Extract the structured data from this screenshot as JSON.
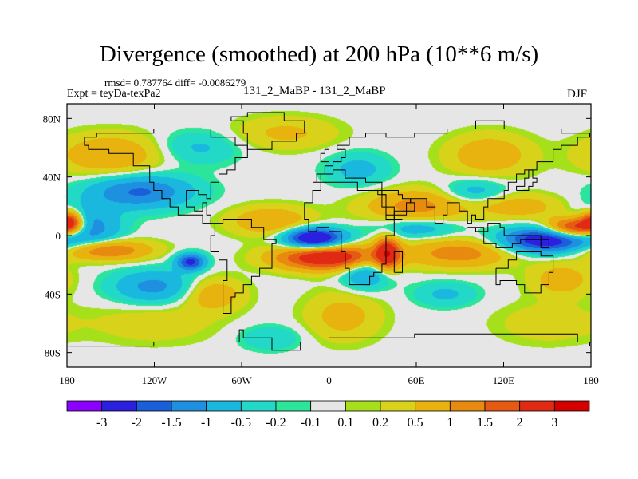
{
  "chart_data": {
    "type": "heatmap",
    "title": "Divergence (smoothed) at 200 hPa (10**6 m/s)",
    "stats_text": "rmsd= 0.787764 diff= -0.0086279",
    "experiment_text": "Expt = teyDa-texPa2",
    "subtitle": "131_2_MaBP - 131_2_MaBP",
    "season": "DJF",
    "x_axis": {
      "range": [
        -180,
        180
      ],
      "ticks": [
        {
          "value": -180,
          "label": "180"
        },
        {
          "value": -120,
          "label": "120W"
        },
        {
          "value": -60,
          "label": "60W"
        },
        {
          "value": 0,
          "label": "0"
        },
        {
          "value": 60,
          "label": "60E"
        },
        {
          "value": 120,
          "label": "120E"
        },
        {
          "value": 180,
          "label": "180"
        }
      ]
    },
    "y_axis": {
      "range": [
        -90,
        90
      ],
      "ticks": [
        {
          "value": 80,
          "label": "80N"
        },
        {
          "value": 40,
          "label": "40N"
        },
        {
          "value": 0,
          "label": "0"
        },
        {
          "value": -40,
          "label": "40S"
        },
        {
          "value": -80,
          "label": "80S"
        }
      ]
    },
    "colorbar": {
      "colors": [
        "#8c00ff",
        "#2b1fe0",
        "#1a5fd9",
        "#1f8fe0",
        "#1ab8df",
        "#22d9c8",
        "#2ce59a",
        "#e6e6e6",
        "#a6e01a",
        "#d8d21a",
        "#e8b30f",
        "#e88a10",
        "#e65a14",
        "#e02a14",
        "#d40000"
      ],
      "labels": [
        "-3",
        "-2",
        "-1.5",
        "-1",
        "-0.5",
        "-0.2",
        "-0.1",
        "0.1",
        "0.2",
        "0.5",
        "1",
        "1.5",
        "2",
        "3"
      ]
    },
    "features": [
      {
        "lon": -10,
        "lat": -2,
        "value": -3.2,
        "slon": 14,
        "slat": 5
      },
      {
        "lon": 150,
        "lat": -3,
        "value": -2.8,
        "slon": 22,
        "slat": 6
      },
      {
        "lon": -95,
        "lat": -18,
        "value": -2.2,
        "slon": 7,
        "slat": 4
      },
      {
        "lon": -130,
        "lat": 30,
        "value": -1.6,
        "slon": 25,
        "slat": 8
      },
      {
        "lon": -165,
        "lat": 5,
        "value": -1.4,
        "slon": 15,
        "slat": 10
      },
      {
        "lon": -120,
        "lat": -35,
        "value": -1.2,
        "slon": 20,
        "slat": 8
      },
      {
        "lon": 25,
        "lat": -25,
        "value": -1.2,
        "slon": 12,
        "slat": 8
      },
      {
        "lon": 60,
        "lat": 5,
        "value": -0.9,
        "slon": 20,
        "slat": 5
      },
      {
        "lon": 100,
        "lat": 30,
        "value": -0.8,
        "slon": 15,
        "slat": 6
      },
      {
        "lon": 20,
        "lat": 45,
        "value": -0.7,
        "slon": 15,
        "slat": 8
      },
      {
        "lon": -90,
        "lat": 60,
        "value": -0.6,
        "slon": 20,
        "slat": 8
      },
      {
        "lon": 80,
        "lat": -40,
        "value": -0.6,
        "slon": 15,
        "slat": 6
      },
      {
        "lon": -40,
        "lat": -70,
        "value": -0.5,
        "slon": 15,
        "slat": 6
      },
      {
        "lon": 170,
        "lat": 5,
        "value": 2.8,
        "slon": 14,
        "slat": 5
      },
      {
        "lon": -178,
        "lat": 10,
        "value": 2.3,
        "slon": 6,
        "slat": 5
      },
      {
        "lon": 0,
        "lat": -15,
        "value": 2.9,
        "slon": 25,
        "slat": 6
      },
      {
        "lon": 40,
        "lat": -12,
        "value": 2.4,
        "slon": 6,
        "slat": 8
      },
      {
        "lon": -155,
        "lat": -10,
        "value": 1.7,
        "slon": 22,
        "slat": 5
      },
      {
        "lon": 90,
        "lat": -12,
        "value": 1.3,
        "slon": 25,
        "slat": 7
      },
      {
        "lon": 60,
        "lat": 20,
        "value": 1.2,
        "slon": 25,
        "slat": 8
      },
      {
        "lon": -40,
        "lat": 10,
        "value": 1.0,
        "slon": 20,
        "slat": 7
      },
      {
        "lon": -150,
        "lat": 55,
        "value": 1.0,
        "slon": 25,
        "slat": 10
      },
      {
        "lon": 110,
        "lat": 55,
        "value": 0.9,
        "slon": 20,
        "slat": 10
      },
      {
        "lon": 130,
        "lat": 20,
        "value": 0.8,
        "slon": 20,
        "slat": 6
      },
      {
        "lon": -80,
        "lat": -40,
        "value": 0.9,
        "slon": 15,
        "slat": 8
      },
      {
        "lon": -30,
        "lat": 70,
        "value": 0.6,
        "slon": 25,
        "slat": 8
      },
      {
        "lon": 10,
        "lat": -55,
        "value": 0.7,
        "slon": 18,
        "slat": 12
      },
      {
        "lon": -120,
        "lat": -60,
        "value": 0.4,
        "slon": 30,
        "slat": 10
      },
      {
        "lon": 150,
        "lat": -60,
        "value": 0.4,
        "slon": 25,
        "slat": 10
      },
      {
        "lon": 160,
        "lat": -30,
        "value": 0.8,
        "slon": 15,
        "slat": 8
      }
    ]
  }
}
